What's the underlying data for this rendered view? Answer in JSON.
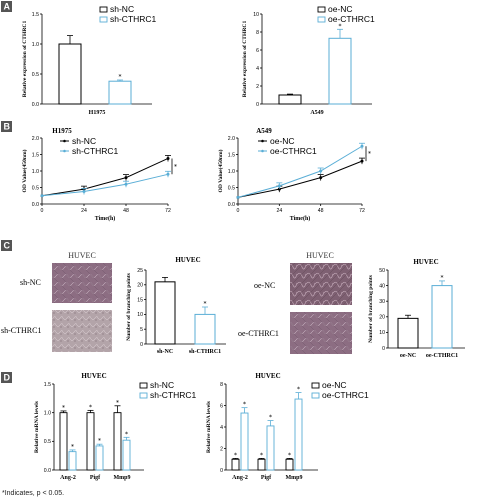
{
  "panels": {
    "A": "A",
    "B": "B",
    "C": "C",
    "D": "D"
  },
  "footnote": "*Indicates, p < 0.05.",
  "colors": {
    "black": "#000000",
    "blue": "#5aaed6"
  },
  "chart_data": [
    {
      "id": "A-left",
      "type": "bar",
      "categories": [
        "sh-NC",
        "sh-CTHRC1"
      ],
      "values": [
        1.0,
        0.38
      ],
      "errors": [
        0.14,
        0.02
      ],
      "xlabel": "H1975",
      "ylabel": "Relative expression of CTHRC1",
      "ylim": [
        0,
        1.5
      ],
      "yticks": [
        "0.0",
        "0.5",
        "1.0",
        "1.5"
      ],
      "legend": [
        "sh-NC",
        "sh-CTHRC1"
      ],
      "stars": [
        "",
        "*"
      ]
    },
    {
      "id": "A-right",
      "type": "bar",
      "categories": [
        "oe-NC",
        "oe-CTHRC1"
      ],
      "values": [
        1.0,
        7.3
      ],
      "errors": [
        0.1,
        1.0
      ],
      "xlabel": "A549",
      "ylabel": "Relative expression of CTHRC1",
      "ylim": [
        0,
        10
      ],
      "yticks": [
        "0",
        "2",
        "4",
        "6",
        "8",
        "10"
      ],
      "legend": [
        "oe-NC",
        "oe-CTHRC1"
      ],
      "stars": [
        "",
        "*"
      ]
    },
    {
      "id": "B-left",
      "type": "line",
      "title": "H1975",
      "x": [
        0,
        24,
        48,
        72
      ],
      "xticks": [
        "0",
        "24",
        "48",
        "72"
      ],
      "series": [
        {
          "name": "sh-NC",
          "values": [
            0.25,
            0.45,
            0.8,
            1.38
          ]
        },
        {
          "name": "sh-CTHRC1",
          "values": [
            0.25,
            0.38,
            0.6,
            0.9
          ]
        }
      ],
      "xlabel": "Time(h)",
      "ylabel": "OD Value(450nm)",
      "ylim": [
        0,
        2.0
      ],
      "yticks": [
        "0.0",
        "0.5",
        "1.0",
        "1.5",
        "2.0"
      ],
      "star": "*"
    },
    {
      "id": "B-right",
      "type": "line",
      "title": "A549",
      "x": [
        0,
        24,
        48,
        72
      ],
      "xticks": [
        "0",
        "24",
        "48",
        "72"
      ],
      "series": [
        {
          "name": "oe-NC",
          "values": [
            0.2,
            0.45,
            0.8,
            1.3
          ]
        },
        {
          "name": "oe-CTHRC1",
          "values": [
            0.2,
            0.55,
            1.0,
            1.75
          ]
        }
      ],
      "xlabel": "Time(h)",
      "ylabel": "OD Value(450nm)",
      "ylim": [
        0,
        2.0
      ],
      "yticks": [
        "0.0",
        "0.5",
        "1.0",
        "1.5",
        "2.0"
      ],
      "star": "*"
    },
    {
      "id": "C-left",
      "type": "bar",
      "title": "HUVEC",
      "categories": [
        "sh-NC",
        "sh-CTHRC1"
      ],
      "values": [
        21,
        10
      ],
      "errors": [
        1.5,
        2.5
      ],
      "ylabel": "Number of branching points",
      "ylim": [
        0,
        25
      ],
      "yticks": [
        "0",
        "5",
        "10",
        "15",
        "20",
        "25"
      ],
      "stars": [
        "",
        "*"
      ]
    },
    {
      "id": "C-right",
      "type": "bar",
      "title": "HUVEC",
      "categories": [
        "oe-NC",
        "oe-CTHRC1"
      ],
      "values": [
        19,
        40
      ],
      "errors": [
        2,
        3
      ],
      "ylabel": "Number of branching points",
      "ylim": [
        0,
        50
      ],
      "yticks": [
        "0",
        "10",
        "20",
        "30",
        "40",
        "50"
      ],
      "stars": [
        "",
        "*"
      ]
    },
    {
      "id": "D-left",
      "type": "bar",
      "title": "HUVEC",
      "categories": [
        "Ang-2",
        "Pigf",
        "Mmp9"
      ],
      "series": [
        {
          "name": "sh-NC",
          "values": [
            1.0,
            1.0,
            1.0
          ],
          "errors": [
            0.03,
            0.04,
            0.12
          ]
        },
        {
          "name": "sh-CTHRC1",
          "values": [
            0.32,
            0.42,
            0.52
          ],
          "errors": [
            0.03,
            0.03,
            0.05
          ]
        }
      ],
      "ylabel": "Relative mRNA levels",
      "ylim": [
        0,
        1.5
      ],
      "yticks": [
        "0.0",
        "0.5",
        "1.0",
        "1.5"
      ],
      "stars": "*"
    },
    {
      "id": "D-right",
      "type": "bar",
      "title": "HUVEC",
      "categories": [
        "Ang-2",
        "Pigf",
        "Mmp9"
      ],
      "series": [
        {
          "name": "oe-NC",
          "values": [
            1.0,
            1.0,
            1.0
          ],
          "errors": [
            0.08,
            0.08,
            0.08
          ]
        },
        {
          "name": "oe-CTHRC1",
          "values": [
            5.3,
            4.1,
            6.6
          ],
          "errors": [
            0.5,
            0.5,
            0.6
          ]
        }
      ],
      "ylabel": "Relative mRNA levels",
      "ylim": [
        0,
        8
      ],
      "yticks": [
        "0",
        "2",
        "4",
        "6",
        "8"
      ],
      "stars": "*"
    }
  ],
  "micrographs": {
    "left_title": "HUVEC",
    "left_labels": [
      "sh-NC",
      "sh-CTHRC1"
    ],
    "right_title": "HUVEC",
    "right_labels": [
      "oe-NC",
      "oe-CTHRC1"
    ]
  }
}
